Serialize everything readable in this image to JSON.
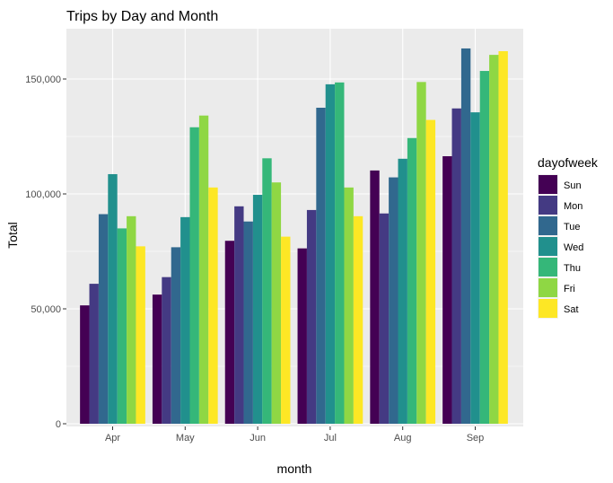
{
  "chart_data": {
    "type": "bar",
    "title": "Trips by Day and Month",
    "xlabel": "month",
    "ylabel": "Total",
    "categories": [
      "Apr",
      "May",
      "Jun",
      "Jul",
      "Aug",
      "Sep"
    ],
    "ylim": [
      0,
      170000
    ],
    "yticks": [
      0,
      50000,
      100000,
      150000
    ],
    "ytick_labels": [
      "0",
      "50,000",
      "100,000",
      "150,000"
    ],
    "grid": true,
    "legend_title": "dayofweek",
    "legend_position": "right",
    "colors": {
      "panel_background": "#ebebeb",
      "grid": "#ffffff"
    },
    "series": [
      {
        "name": "Sun",
        "color": "#440154",
        "values": [
          51500,
          56200,
          79600,
          76300,
          110200,
          116400
        ]
      },
      {
        "name": "Mon",
        "color": "#443a83",
        "values": [
          60900,
          63800,
          94600,
          93000,
          91500,
          137200
        ]
      },
      {
        "name": "Tue",
        "color": "#31688e",
        "values": [
          91200,
          76800,
          88000,
          137500,
          107200,
          163300
        ]
      },
      {
        "name": "Wed",
        "color": "#21908d",
        "values": [
          108600,
          89900,
          99600,
          147700,
          115300,
          135500
        ]
      },
      {
        "name": "Thu",
        "color": "#35b779",
        "values": [
          85000,
          129000,
          115500,
          148500,
          124300,
          153500
        ]
      },
      {
        "name": "Fri",
        "color": "#8fd744",
        "values": [
          90300,
          134100,
          105000,
          102800,
          148700,
          160500
        ]
      },
      {
        "name": "Sat",
        "color": "#fde725",
        "values": [
          77200,
          102800,
          81400,
          90300,
          132200,
          162100
        ]
      }
    ]
  }
}
